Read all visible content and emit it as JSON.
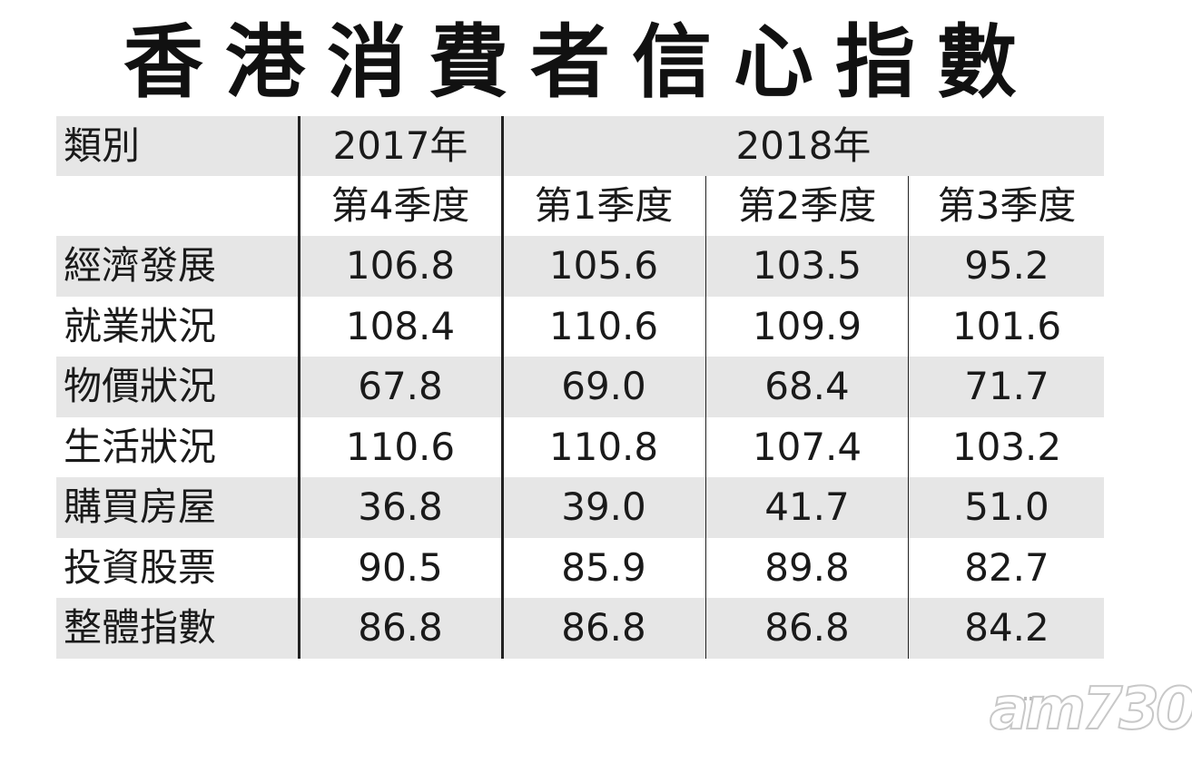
{
  "title": "香港消費者信心指數",
  "chart_data": {
    "type": "table",
    "header": {
      "category_label": "類別",
      "year_2017": "2017年",
      "year_2018": "2018年"
    },
    "quarters": [
      "第4季度",
      "第1季度",
      "第2季度",
      "第3季度"
    ],
    "rows": [
      {
        "category": "經濟發展",
        "values": [
          "106.8",
          "105.6",
          "103.5",
          "95.2"
        ]
      },
      {
        "category": "就業狀況",
        "values": [
          "108.4",
          "110.6",
          "109.9",
          "101.6"
        ]
      },
      {
        "category": "物價狀況",
        "values": [
          "67.8",
          "69.0",
          "68.4",
          "71.7"
        ]
      },
      {
        "category": "生活狀況",
        "values": [
          "110.6",
          "110.8",
          "107.4",
          "103.2"
        ]
      },
      {
        "category": "購買房屋",
        "values": [
          "36.8",
          "39.0",
          "41.7",
          "51.0"
        ]
      },
      {
        "category": "投資股票",
        "values": [
          "90.5",
          "85.9",
          "89.8",
          "82.7"
        ]
      },
      {
        "category": "整體指數",
        "values": [
          "86.8",
          "86.8",
          "86.8",
          "84.2"
        ]
      }
    ]
  },
  "watermark": "am730",
  "colors": {
    "shade": "#e6e6e6",
    "text": "#1a1a1a",
    "line": "#222222"
  }
}
